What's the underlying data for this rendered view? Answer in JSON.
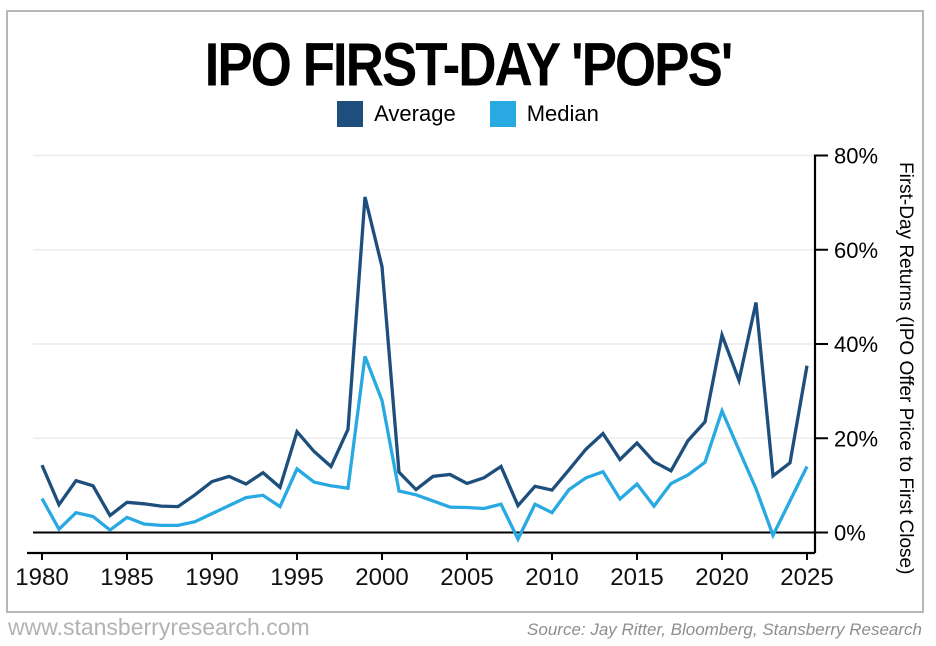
{
  "card": {
    "title": "IPO FIRST-DAY 'POPS'"
  },
  "legend": [
    {
      "label": "Average",
      "color": "#1d4e7c"
    },
    {
      "label": "Median",
      "color": "#29a9e1"
    }
  ],
  "chart_data": {
    "type": "line",
    "title": "IPO FIRST-DAY 'POPS'",
    "xlabel": "",
    "ylabel": "First-Day Returns (IPO Offer Price to First Close)",
    "ylim": [
      -2,
      80
    ],
    "grid": true,
    "legend_position": "top",
    "y_ticks": [
      "80%",
      "60%",
      "40%",
      "20%",
      "0%"
    ],
    "y_tick_values": [
      80,
      60,
      40,
      20,
      0
    ],
    "x_tick_labels": [
      "1980",
      "1985",
      "1990",
      "1995",
      "2000",
      "2005",
      "2010",
      "2015",
      "2020",
      "2025"
    ],
    "x": [
      1980,
      1981,
      1982,
      1983,
      1984,
      1985,
      1986,
      1987,
      1988,
      1989,
      1990,
      1991,
      1992,
      1993,
      1994,
      1995,
      1996,
      1997,
      1998,
      1999,
      2000,
      2001,
      2002,
      2003,
      2004,
      2005,
      2006,
      2007,
      2008,
      2009,
      2010,
      2011,
      2012,
      2013,
      2014,
      2015,
      2016,
      2017,
      2018,
      2019,
      2020,
      2021,
      2022,
      2023,
      2024,
      2025
    ],
    "series": [
      {
        "name": "Average",
        "color": "#1d4e7c",
        "values": [
          14.3,
          5.9,
          11.0,
          9.9,
          3.6,
          6.4,
          6.1,
          5.6,
          5.5,
          8.0,
          10.8,
          11.9,
          10.3,
          12.7,
          9.6,
          21.4,
          17.2,
          14.0,
          21.9,
          71.2,
          56.4,
          12.8,
          9.1,
          11.9,
          12.3,
          10.4,
          11.6,
          14.0,
          5.7,
          9.8,
          9.0,
          13.3,
          17.7,
          21.0,
          15.5,
          19.0,
          15.0,
          13.1,
          19.5,
          23.5,
          41.9,
          32.3,
          48.8,
          12.0,
          14.8,
          35.4
        ]
      },
      {
        "name": "Median",
        "color": "#29a9e1",
        "values": [
          7.2,
          0.7,
          4.2,
          3.4,
          0.5,
          3.2,
          1.8,
          1.5,
          1.5,
          2.3,
          4.0,
          5.7,
          7.4,
          7.9,
          5.5,
          13.5,
          10.7,
          9.9,
          9.4,
          37.4,
          28.0,
          8.8,
          8.0,
          6.7,
          5.4,
          5.3,
          5.1,
          6.0,
          -1.4,
          6.0,
          4.2,
          9.1,
          11.6,
          12.9,
          7.1,
          10.3,
          5.6,
          10.4,
          12.2,
          14.9,
          25.8,
          17.5,
          9.3,
          -0.6,
          6.7,
          14.0
        ]
      }
    ]
  },
  "footer": {
    "website": "www.stansberryresearch.com",
    "source": "Source: Jay Ritter, Bloomberg, Stansberry Research"
  }
}
